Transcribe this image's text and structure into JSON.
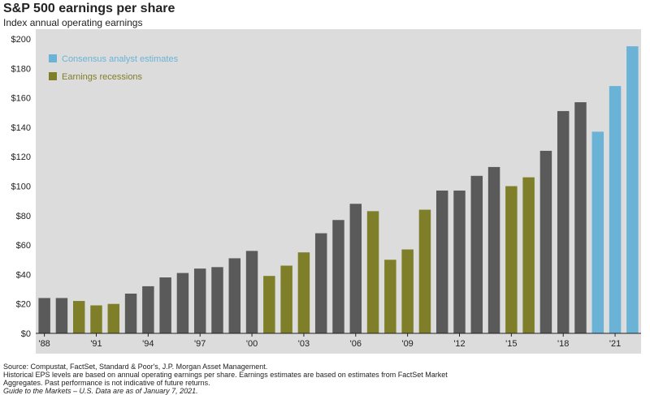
{
  "title": "S&P 500 earnings per share",
  "subtitle": "Index annual operating earnings",
  "footer": {
    "line1": "Source: Compustat, FactSet, Standard & Poor's, J.P. Morgan Asset Management.",
    "line2": "Historical EPS levels are based on annual operating earnings per share. Earnings estimates are based on estimates from FactSet Market",
    "line3": "Aggregates. Past performance is not indicative of future returns.",
    "line4": "Guide to the Markets – U.S. Data are as of January 7, 2021."
  },
  "colors": {
    "actual": "#5a5a5a",
    "recession": "#7f7f2a",
    "estimate": "#6bb3d6",
    "plot_background": "#dcdcdc"
  },
  "chart_data": {
    "type": "bar",
    "title": "S&P 500 earnings per share",
    "subtitle": "Index annual operating earnings",
    "ylim": [
      0,
      200
    ],
    "yticks": [
      "$0",
      "$20",
      "$40",
      "$60",
      "$80",
      "$100",
      "$120",
      "$140",
      "$160",
      "$180",
      "$200"
    ],
    "ytick_values": [
      0,
      20,
      40,
      60,
      80,
      100,
      120,
      140,
      160,
      180,
      200
    ],
    "xtick_labels": [
      "'88",
      "'91",
      "'94",
      "'97",
      "'00",
      "'03",
      "'06",
      "'09",
      "'12",
      "'15",
      "'18",
      "'21"
    ],
    "xtick_years": [
      1988,
      1991,
      1994,
      1997,
      2000,
      2003,
      2006,
      2009,
      2012,
      2015,
      2018,
      2021
    ],
    "legend": [
      {
        "label": "Consensus analyst estimates",
        "kind": "estimate"
      },
      {
        "label": "Earnings recessions",
        "kind": "recession"
      }
    ],
    "legend_placement": "top-left",
    "grid": false,
    "bars": [
      {
        "year": 1988,
        "value": 24,
        "kind": "actual"
      },
      {
        "year": 1989,
        "value": 24,
        "kind": "actual"
      },
      {
        "year": 1990,
        "value": 22,
        "kind": "recession"
      },
      {
        "year": 1991,
        "value": 19,
        "kind": "recession"
      },
      {
        "year": 1992,
        "value": 20,
        "kind": "recession"
      },
      {
        "year": 1993,
        "value": 27,
        "kind": "actual"
      },
      {
        "year": 1994,
        "value": 32,
        "kind": "actual"
      },
      {
        "year": 1995,
        "value": 38,
        "kind": "actual"
      },
      {
        "year": 1996,
        "value": 41,
        "kind": "actual"
      },
      {
        "year": 1997,
        "value": 44,
        "kind": "actual"
      },
      {
        "year": 1998,
        "value": 45,
        "kind": "actual"
      },
      {
        "year": 1999,
        "value": 51,
        "kind": "actual"
      },
      {
        "year": 2000,
        "value": 56,
        "kind": "actual"
      },
      {
        "year": 2001,
        "value": 39,
        "kind": "recession"
      },
      {
        "year": 2002,
        "value": 46,
        "kind": "recession"
      },
      {
        "year": 2003,
        "value": 55,
        "kind": "recession"
      },
      {
        "year": 2004,
        "value": 68,
        "kind": "actual"
      },
      {
        "year": 2005,
        "value": 77,
        "kind": "actual"
      },
      {
        "year": 2006,
        "value": 88,
        "kind": "actual"
      },
      {
        "year": 2007,
        "value": 83,
        "kind": "recession"
      },
      {
        "year": 2008,
        "value": 50,
        "kind": "recession"
      },
      {
        "year": 2009,
        "value": 57,
        "kind": "recession"
      },
      {
        "year": 2010,
        "value": 84,
        "kind": "recession"
      },
      {
        "year": 2011,
        "value": 97,
        "kind": "actual"
      },
      {
        "year": 2012,
        "value": 97,
        "kind": "actual"
      },
      {
        "year": 2013,
        "value": 107,
        "kind": "actual"
      },
      {
        "year": 2014,
        "value": 113,
        "kind": "actual"
      },
      {
        "year": 2015,
        "value": 100,
        "kind": "recession"
      },
      {
        "year": 2016,
        "value": 106,
        "kind": "recession"
      },
      {
        "year": 2017,
        "value": 124,
        "kind": "actual"
      },
      {
        "year": 2018,
        "value": 151,
        "kind": "actual"
      },
      {
        "year": 2019,
        "value": 157,
        "kind": "actual"
      },
      {
        "year": 2020,
        "value": 137,
        "kind": "estimate"
      },
      {
        "year": 2021,
        "value": 168,
        "kind": "estimate"
      },
      {
        "year": 2022,
        "value": 195,
        "kind": "estimate"
      }
    ]
  }
}
